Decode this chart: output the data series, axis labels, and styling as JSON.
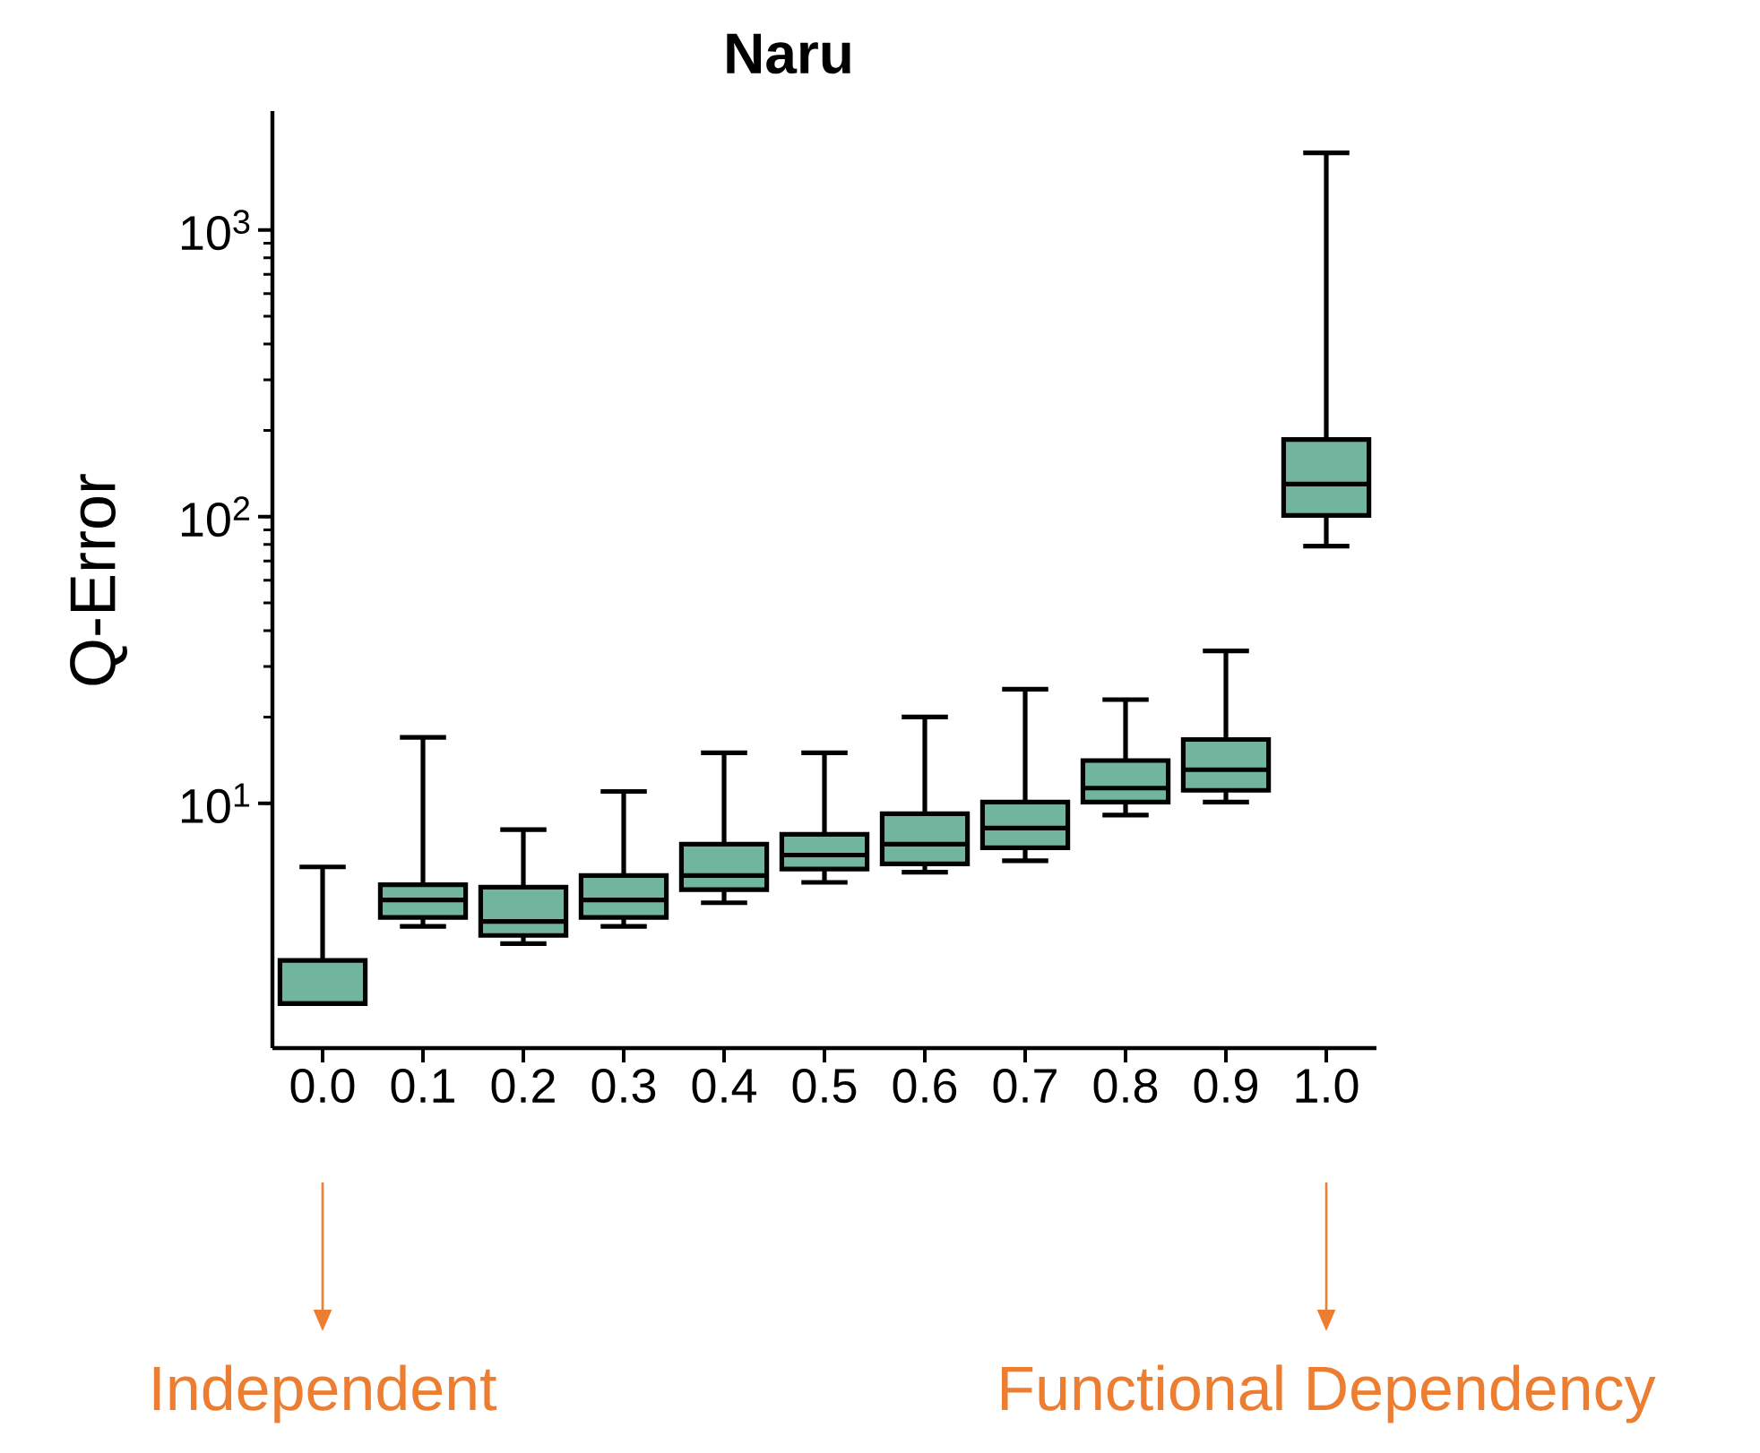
{
  "chart_data": {
    "type": "box",
    "title": "Naru",
    "ylabel": "Q-Error",
    "categories": [
      "0.0",
      "0.1",
      "0.2",
      "0.3",
      "0.4",
      "0.5",
      "0.6",
      "0.7",
      "0.8",
      "0.9",
      "1.0"
    ],
    "color": "#72b59e",
    "boxes": [
      {
        "low": 2.0,
        "q1": 2.0,
        "median": 2.0,
        "q3": 2.83,
        "high": 6.0
      },
      {
        "low": 3.72,
        "q1": 4.0,
        "median": 4.6,
        "q3": 5.2,
        "high": 17
      },
      {
        "low": 3.24,
        "q1": 3.46,
        "median": 3.87,
        "q3": 5.1,
        "high": 8.1
      },
      {
        "low": 3.72,
        "q1": 4.0,
        "median": 4.6,
        "q3": 5.6,
        "high": 11
      },
      {
        "low": 4.5,
        "q1": 5.0,
        "median": 5.6,
        "q3": 7.2,
        "high": 15
      },
      {
        "low": 5.3,
        "q1": 5.9,
        "median": 6.6,
        "q3": 7.8,
        "high": 15
      },
      {
        "low": 5.75,
        "q1": 6.15,
        "median": 7.2,
        "q3": 9.2,
        "high": 20
      },
      {
        "low": 6.3,
        "q1": 7.0,
        "median": 8.2,
        "q3": 10.1,
        "high": 25
      },
      {
        "low": 9.1,
        "q1": 10.1,
        "median": 11.3,
        "q3": 14.1,
        "high": 23
      },
      {
        "low": 10.1,
        "q1": 11.1,
        "median": 13.1,
        "q3": 16.7,
        "high": 34
      },
      {
        "low": 79,
        "q1": 101,
        "median": 130,
        "q3": 186,
        "high": 1860
      }
    ],
    "log": true,
    "ylim": [
      1.4,
      2600
    ],
    "yticks": [
      {
        "value": 10,
        "label": "10$^{1}$"
      },
      {
        "value": 100,
        "label": "10$^{2}$"
      },
      {
        "value": 1000,
        "label": "10$^{3}$"
      }
    ],
    "annotations": [
      "Independent",
      "Functional Dependency"
    ]
  }
}
